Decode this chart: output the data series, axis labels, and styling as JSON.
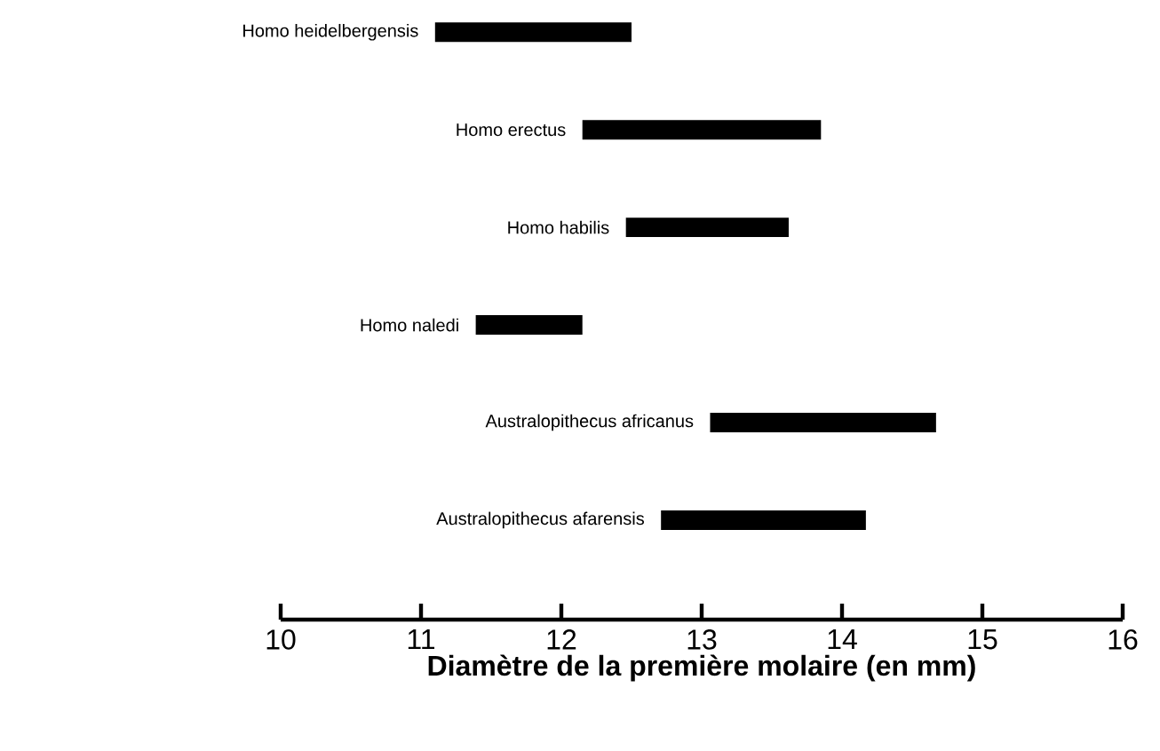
{
  "chart_data": {
    "type": "bar",
    "orientation": "horizontal",
    "categories": [
      "Homo heidelbergensis",
      "Homo erectus",
      "Homo habilis",
      "Homo naledi",
      "Australopithecus africanus",
      "Australopithecus afarensis"
    ],
    "base": [
      11.1,
      12.15,
      12.46,
      11.39,
      13.06,
      12.71
    ],
    "values": [
      1.4,
      1.7,
      1.16,
      0.76,
      1.61,
      1.46
    ],
    "color": "#000000",
    "xlim": [
      10,
      16
    ],
    "xticks": [
      10,
      11,
      12,
      13,
      14,
      15,
      16
    ],
    "xlabel": "Diamètre de la première molaire (en mm)"
  }
}
